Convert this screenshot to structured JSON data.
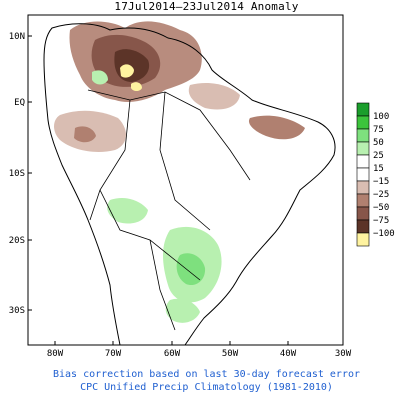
{
  "title": "17Jul2014–23Jul2014 Anomaly",
  "y_ticks": [
    "10N",
    "EQ",
    "10S",
    "20S",
    "30S"
  ],
  "x_ticks": [
    "80W",
    "70W",
    "60W",
    "50W",
    "40W",
    "30W"
  ],
  "legend": {
    "entries": [
      {
        "label": "100",
        "color": "#1b9e2c"
      },
      {
        "label": "75",
        "color": "#3cc43c"
      },
      {
        "label": "50",
        "color": "#7ee07e"
      },
      {
        "label": "25",
        "color": "#b8f0b0"
      },
      {
        "label": "15",
        "color": "#ffffff"
      },
      {
        "label": "−15",
        "color": "#ffffff"
      },
      {
        "label": "−25",
        "color": "#d9bdb2"
      },
      {
        "label": "−50",
        "color": "#b08070"
      },
      {
        "label": "−75",
        "color": "#87564a"
      },
      {
        "label": "−100",
        "color": "#5c3428"
      },
      {
        "label": "",
        "color": "#fff3a0"
      }
    ]
  },
  "caption": {
    "line1": "Bias correction based on last 30-day forecast error",
    "line2": "CPC Unified Precip Climatology (1981-2010)"
  },
  "colors": {
    "caption": "#1f5fd0",
    "dry_strong": "#5c3428",
    "dry_mid": "#87564a",
    "dry_light": "#b08070",
    "dry_faint": "#d9bdb2",
    "wet_faint": "#b8f0b0",
    "wet_light": "#7ee07e",
    "extreme_dry": "#fff3a0"
  }
}
